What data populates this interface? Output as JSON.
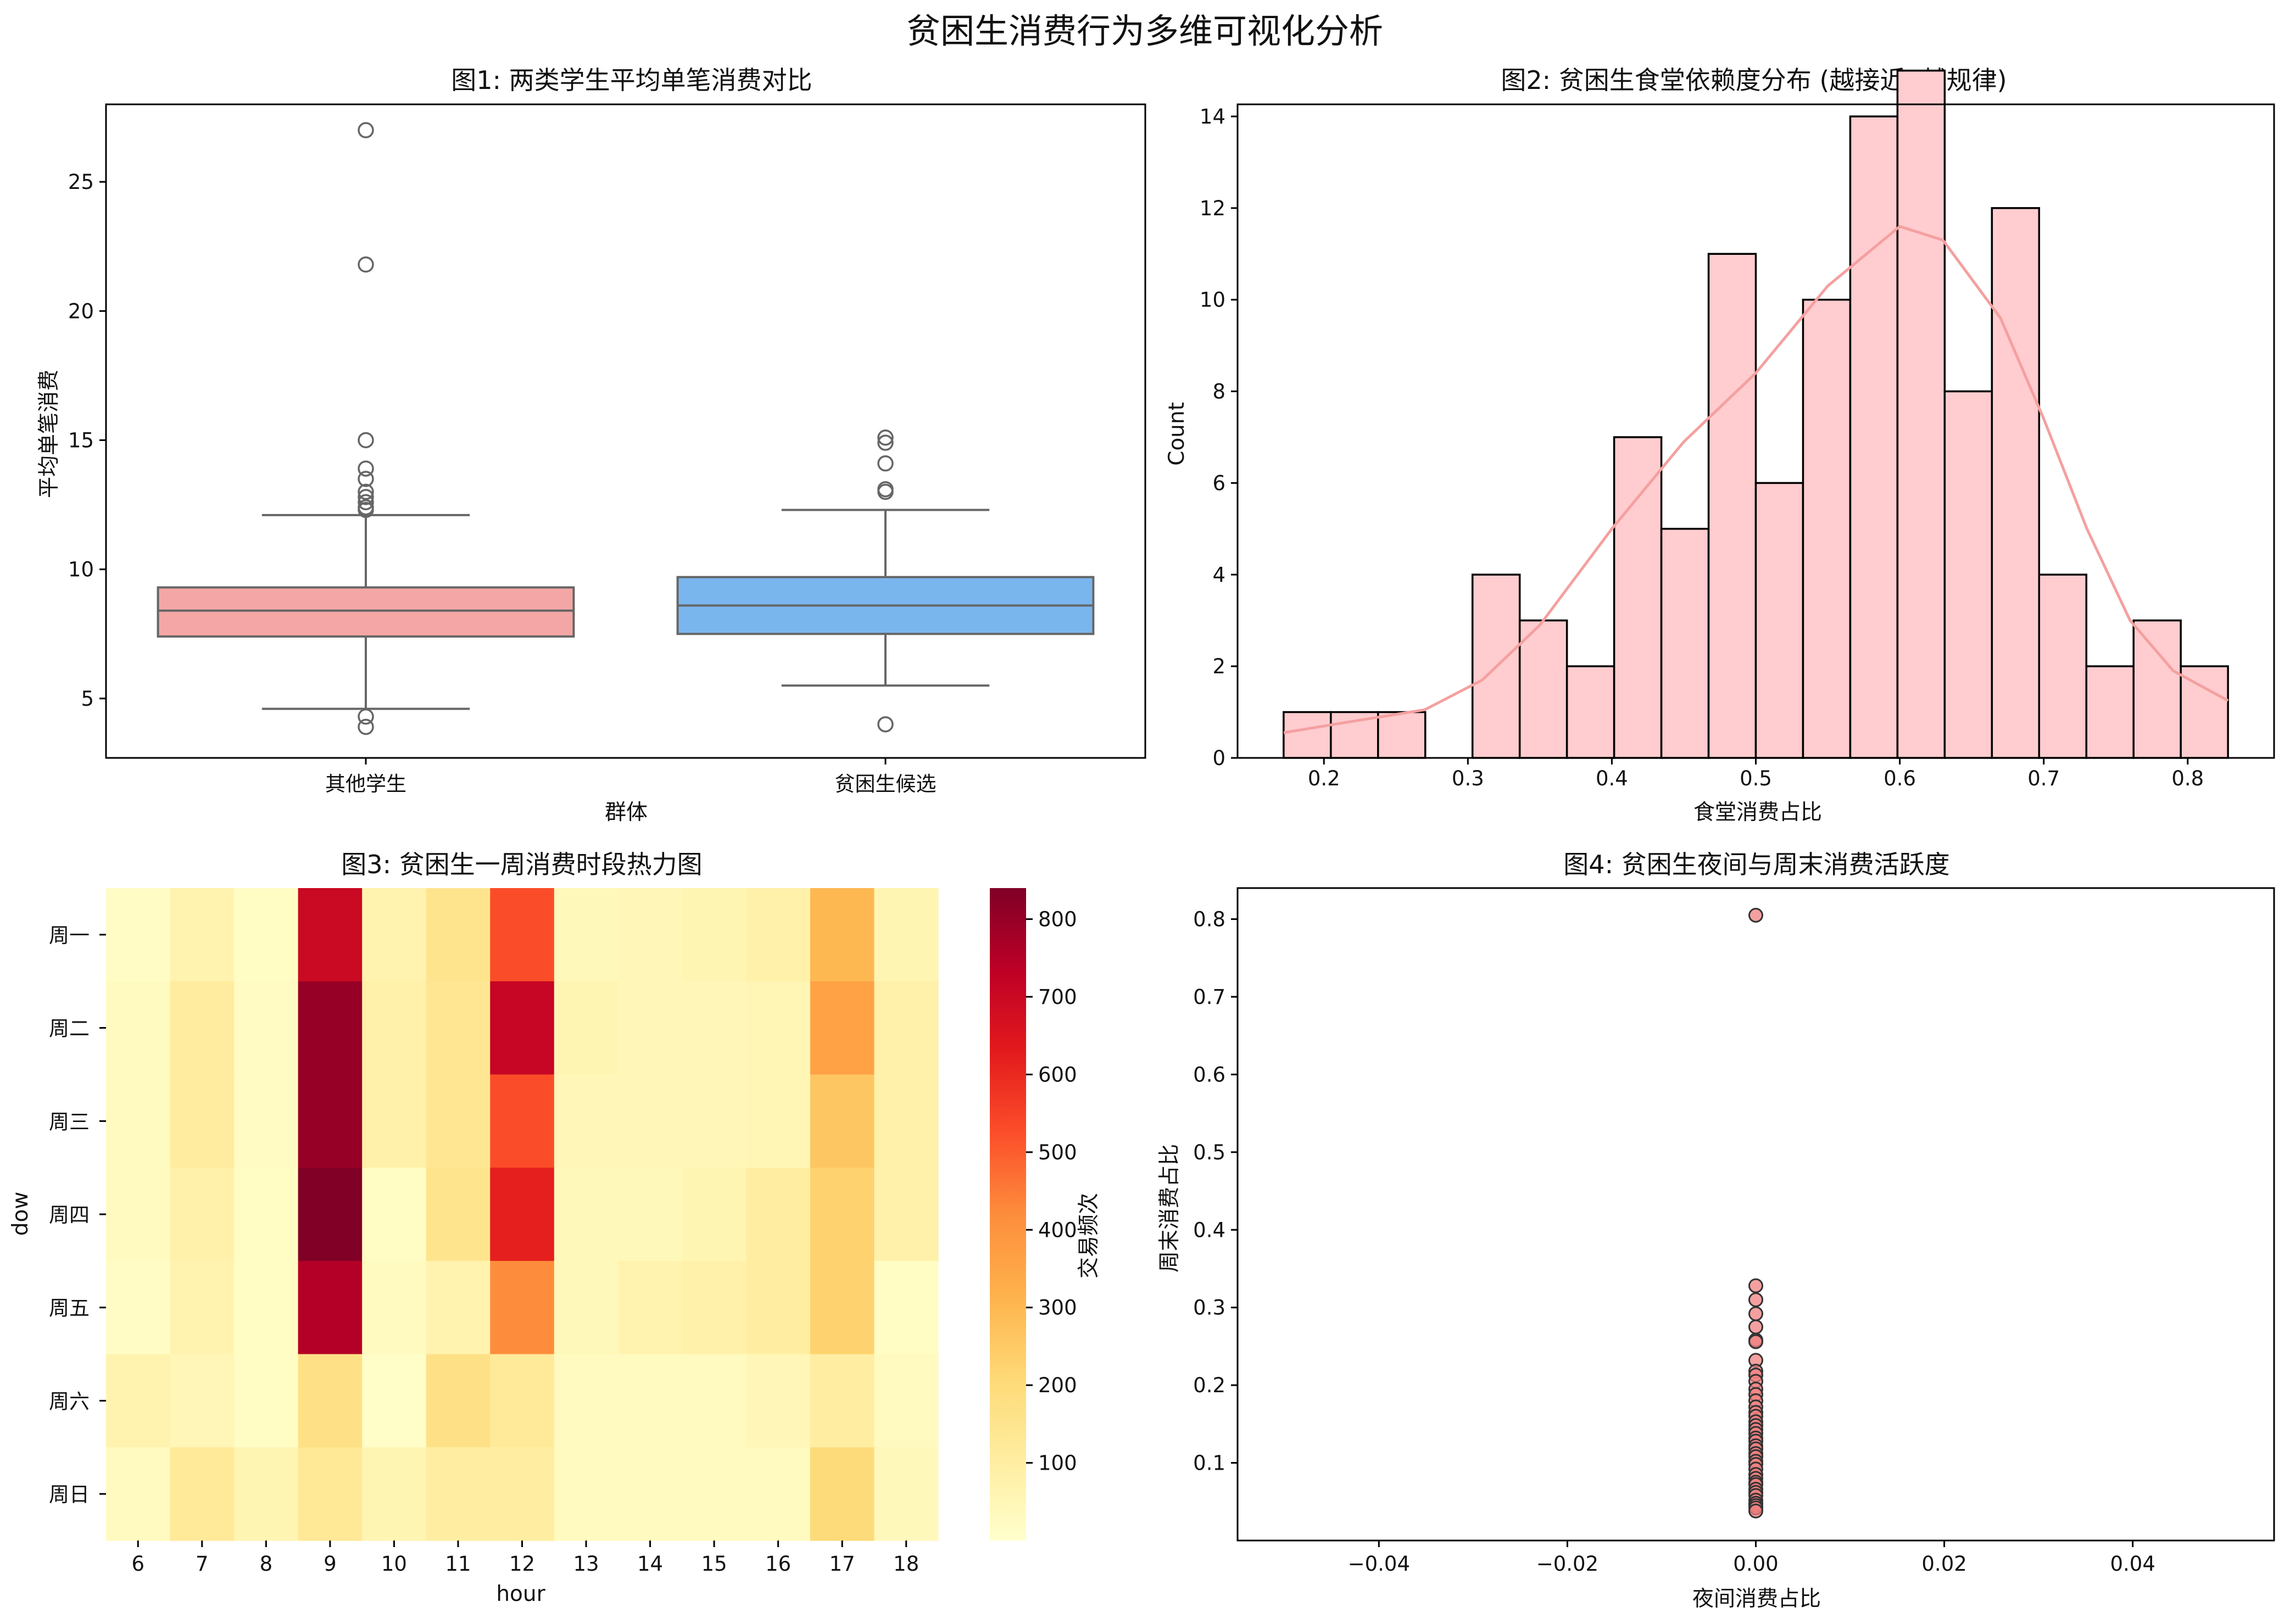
{
  "figure": {
    "title": "贫困生消费行为多维可视化分析"
  },
  "chart_data": [
    {
      "type": "box",
      "title": "图1: 两类学生平均单笔消费对比",
      "xlabel": "群体",
      "ylabel": "平均单笔消费",
      "ylim": [
        2.7,
        28.0
      ],
      "yticks": [
        5,
        10,
        15,
        20,
        25
      ],
      "colors": [
        "#f4a6a6",
        "#7ab6ee"
      ],
      "groups": [
        {
          "name": "其他学生",
          "whisker_low": 4.6,
          "q1": 7.4,
          "median": 8.4,
          "q3": 9.3,
          "whisker_high": 12.1,
          "outliers": [
            27.0,
            21.8,
            15.0,
            13.9,
            13.5,
            13.0,
            12.8,
            12.6,
            12.4,
            12.3,
            4.3,
            3.9
          ]
        },
        {
          "name": "贫困生候选",
          "whisker_low": 5.5,
          "q1": 7.5,
          "median": 8.6,
          "q3": 9.7,
          "whisker_high": 12.3,
          "outliers": [
            15.1,
            14.9,
            14.1,
            13.1,
            13.0,
            4.0
          ]
        }
      ]
    },
    {
      "type": "histogram",
      "title": "图2: 贫困生食堂依赖度分布 (越接近1越规律)",
      "xlabel": "食堂消费占比",
      "ylabel": "Count",
      "xlim": [
        0.14,
        0.86
      ],
      "ylim": [
        0,
        14.0
      ],
      "xticks": [
        0.2,
        0.3,
        0.4,
        0.5,
        0.6,
        0.7,
        0.8
      ],
      "yticks": [
        0,
        2,
        4,
        6,
        8,
        10,
        12,
        14
      ],
      "bin_start": 0.172,
      "bin_width": 0.0328,
      "counts": [
        1,
        1,
        1,
        0,
        4,
        3,
        2,
        7,
        5,
        11,
        6,
        10,
        14,
        15,
        8,
        12,
        4,
        2,
        3,
        2
      ],
      "kde": [
        [
          0.172,
          0.55
        ],
        [
          0.22,
          0.8
        ],
        [
          0.27,
          1.05
        ],
        [
          0.31,
          1.7
        ],
        [
          0.35,
          2.9
        ],
        [
          0.4,
          5.0
        ],
        [
          0.45,
          6.9
        ],
        [
          0.5,
          8.4
        ],
        [
          0.55,
          10.3
        ],
        [
          0.6,
          11.6
        ],
        [
          0.63,
          11.3
        ],
        [
          0.67,
          9.6
        ],
        [
          0.7,
          7.4
        ],
        [
          0.73,
          5.0
        ],
        [
          0.76,
          3.0
        ],
        [
          0.79,
          1.9
        ],
        [
          0.828,
          1.25
        ]
      ],
      "color": "#ffcccf",
      "kde_color": "#f4a0a0"
    },
    {
      "type": "heatmap",
      "title": "图3: 贫困生一周消费时段热力图",
      "xlabel": "hour",
      "ylabel": "dow",
      "colorbar_label": "交易频次",
      "x": [
        6,
        7,
        8,
        9,
        10,
        11,
        12,
        13,
        14,
        15,
        16,
        17,
        18
      ],
      "y": [
        "周一",
        "周二",
        "周三",
        "周四",
        "周五",
        "周六",
        "周日"
      ],
      "vmin": 0,
      "vmax": 840,
      "colorbar_ticks": [
        100,
        200,
        300,
        400,
        500,
        600,
        700,
        800
      ],
      "values": [
        [
          15,
          70,
          20,
          700,
          70,
          150,
          530,
          40,
          50,
          60,
          80,
          300,
          60
        ],
        [
          30,
          110,
          25,
          800,
          80,
          140,
          710,
          60,
          50,
          50,
          55,
          360,
          80
        ],
        [
          30,
          110,
          25,
          800,
          80,
          140,
          530,
          50,
          50,
          50,
          55,
          260,
          80
        ],
        [
          30,
          80,
          20,
          840,
          20,
          150,
          620,
          40,
          40,
          60,
          100,
          230,
          80
        ],
        [
          15,
          70,
          20,
          750,
          30,
          70,
          420,
          40,
          70,
          80,
          100,
          230,
          20
        ],
        [
          70,
          50,
          20,
          170,
          10,
          170,
          120,
          30,
          30,
          30,
          50,
          100,
          30
        ],
        [
          30,
          120,
          60,
          130,
          60,
          100,
          100,
          30,
          30,
          30,
          30,
          200,
          40
        ]
      ]
    },
    {
      "type": "scatter",
      "title": "图4: 贫困生夜间与周末消费活跃度",
      "xlabel": "夜间消费占比",
      "ylabel": "周末消费占比",
      "xlim": [
        -0.055,
        0.055
      ],
      "ylim": [
        0.0,
        0.84
      ],
      "xticks": [
        -0.04,
        -0.02,
        0.0,
        0.02,
        0.04
      ],
      "yticks": [
        0.1,
        0.2,
        0.3,
        0.4,
        0.5,
        0.6,
        0.7,
        0.8
      ],
      "color": "#f08080",
      "points": [
        [
          0,
          0.805
        ],
        [
          0,
          0.328
        ],
        [
          0,
          0.31
        ],
        [
          0,
          0.292
        ],
        [
          0,
          0.275
        ],
        [
          0,
          0.258
        ],
        [
          0,
          0.256
        ],
        [
          0,
          0.232
        ],
        [
          0,
          0.218
        ],
        [
          0,
          0.213
        ],
        [
          0,
          0.205
        ],
        [
          0,
          0.195
        ],
        [
          0,
          0.188
        ],
        [
          0,
          0.18
        ],
        [
          0,
          0.172
        ],
        [
          0,
          0.165
        ],
        [
          0,
          0.16
        ],
        [
          0,
          0.153
        ],
        [
          0,
          0.148
        ],
        [
          0,
          0.143
        ],
        [
          0,
          0.138
        ],
        [
          0,
          0.132
        ],
        [
          0,
          0.128
        ],
        [
          0,
          0.122
        ],
        [
          0,
          0.118
        ],
        [
          0,
          0.112
        ],
        [
          0,
          0.108
        ],
        [
          0,
          0.102
        ],
        [
          0,
          0.098
        ],
        [
          0,
          0.092
        ],
        [
          0,
          0.085
        ],
        [
          0,
          0.08
        ],
        [
          0,
          0.075
        ],
        [
          0,
          0.072
        ],
        [
          0,
          0.066
        ],
        [
          0,
          0.062
        ],
        [
          0,
          0.058
        ],
        [
          0,
          0.052
        ],
        [
          0,
          0.048
        ],
        [
          0,
          0.045
        ],
        [
          0,
          0.042
        ],
        [
          0,
          0.038
        ]
      ]
    }
  ]
}
